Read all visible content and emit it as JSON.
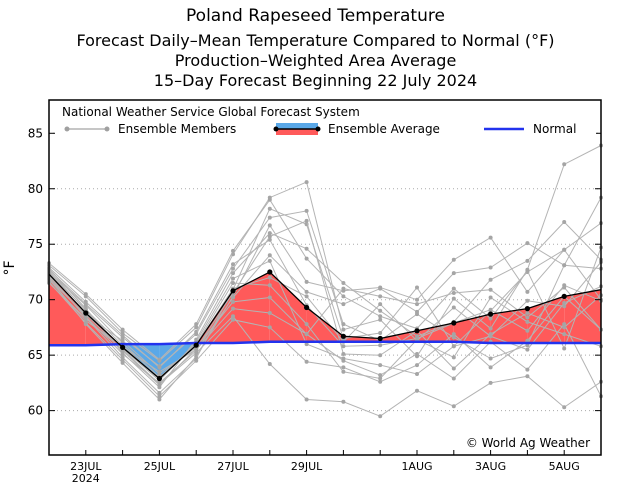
{
  "titles": [
    "Poland Rapeseed Temperature",
    "Forecast Daily–Mean Temperature Compared to Normal (°F)",
    "Production–Weighted Area Average",
    "15–Day Forecast Beginning 22 July 2024"
  ],
  "legend": {
    "system": "National Weather Service Global Forecast System",
    "members": "Ensemble Members",
    "average": "Ensemble Average",
    "normal": "Normal"
  },
  "credit": "© World Ag Weather",
  "colors": {
    "above_normal_fill": "#ff5a5a",
    "below_normal_fill": "#5aa8e8",
    "normal_line": "#2233ee",
    "member_line": "#b4b4b4",
    "average_line": "#000000"
  },
  "chart_data": {
    "type": "line",
    "ylabel": "°F",
    "xlabel": "",
    "ylim": [
      56,
      88
    ],
    "xlim": [
      0,
      15
    ],
    "yticks": [
      60,
      65,
      70,
      75,
      80,
      85
    ],
    "grid": true,
    "legend_position": "top",
    "x_tick_labels": [
      {
        "x": 1,
        "label": "23JUL",
        "sub": "2024"
      },
      {
        "x": 3,
        "label": "25JUL",
        "sub": ""
      },
      {
        "x": 5,
        "label": "27JUL",
        "sub": ""
      },
      {
        "x": 7,
        "label": "29JUL",
        "sub": ""
      },
      {
        "x": 10,
        "label": "1AUG",
        "sub": ""
      },
      {
        "x": 12,
        "label": "3AUG",
        "sub": ""
      },
      {
        "x": 14,
        "label": "5AUG",
        "sub": ""
      }
    ],
    "x": [
      0,
      1,
      2,
      3,
      4,
      5,
      6,
      7,
      8,
      9,
      10,
      11,
      12,
      13,
      14,
      15
    ],
    "normal": [
      65.9,
      65.9,
      66.0,
      66.0,
      66.1,
      66.1,
      66.2,
      66.2,
      66.2,
      66.2,
      66.2,
      66.2,
      66.1,
      66.1,
      66.1,
      66.1
    ],
    "ensemble_average": [
      72.3,
      68.8,
      65.7,
      62.9,
      65.9,
      70.8,
      72.5,
      69.3,
      66.7,
      66.5,
      67.2,
      67.9,
      68.7,
      69.2,
      70.3,
      70.9
    ],
    "ensemble_members": [
      [
        72.8,
        69.2,
        65.2,
        62.1,
        66.4,
        72.4,
        76.0,
        74.6,
        71.5,
        69.0,
        66.7,
        68.0,
        71.8,
        73.5,
        77.0,
        73.6
      ],
      [
        71.8,
        68.1,
        65.8,
        63.5,
        65.5,
        69.2,
        68.8,
        66.9,
        64.5,
        63.2,
        65.1,
        62.9,
        66.2,
        63.7,
        67.8,
        61.3
      ],
      [
        73.1,
        70.3,
        67.0,
        64.5,
        67.5,
        74.1,
        79.2,
        80.6,
        67.3,
        68.2,
        64.9,
        70.1,
        67.4,
        72.7,
        82.2,
        83.9
      ],
      [
        72.0,
        67.8,
        64.3,
        61.0,
        64.9,
        70.3,
        76.7,
        71.6,
        70.8,
        71.1,
        70.0,
        73.6,
        75.6,
        70.7,
        74.5,
        76.9
      ],
      [
        72.5,
        69.5,
        66.1,
        63.0,
        66.0,
        71.5,
        71.3,
        67.8,
        63.5,
        62.9,
        66.4,
        64.8,
        70.2,
        68.0,
        66.9,
        65.8
      ],
      [
        71.5,
        68.3,
        65.5,
        62.4,
        65.2,
        68.5,
        64.2,
        61.0,
        60.8,
        59.5,
        61.8,
        60.4,
        62.5,
        63.1,
        60.3,
        62.6
      ],
      [
        72.9,
        69.8,
        66.8,
        63.9,
        67.1,
        73.2,
        75.4,
        69.5,
        65.8,
        65.9,
        66.5,
        67.9,
        69.1,
        67.2,
        71.3,
        69.9
      ],
      [
        72.2,
        68.4,
        64.8,
        61.6,
        64.7,
        70.9,
        78.2,
        76.8,
        66.5,
        67.0,
        71.1,
        65.8,
        66.7,
        65.5,
        69.7,
        71.2
      ],
      [
        72.6,
        69.0,
        65.6,
        62.7,
        66.2,
        71.9,
        73.5,
        66.0,
        64.7,
        64.1,
        63.3,
        65.8,
        69.0,
        72.5,
        74.5,
        70.0
      ],
      [
        71.9,
        68.6,
        66.3,
        63.3,
        65.7,
        69.8,
        70.2,
        66.9,
        71.0,
        70.3,
        69.6,
        70.6,
        70.9,
        68.4,
        71.1,
        67.3
      ],
      [
        72.7,
        69.6,
        66.6,
        64.0,
        66.9,
        72.8,
        77.4,
        78.0,
        67.8,
        66.3,
        68.7,
        66.6,
        64.7,
        65.9,
        73.1,
        79.2
      ],
      [
        72.1,
        68.5,
        65.1,
        62.5,
        65.4,
        70.2,
        74.0,
        70.7,
        69.6,
        71.0,
        68.9,
        72.4,
        72.9,
        75.1,
        73.1,
        72.8
      ],
      [
        73.3,
        70.5,
        67.3,
        64.6,
        67.8,
        74.4,
        79.0,
        73.7,
        70.3,
        68.5,
        67.4,
        71.0,
        68.3,
        72.6,
        65.6,
        74.7
      ],
      [
        71.6,
        67.9,
        64.6,
        61.3,
        64.5,
        68.2,
        67.5,
        64.4,
        63.9,
        62.6,
        64.1,
        66.9,
        63.9,
        66.3,
        70.3,
        67.3
      ],
      [
        72.4,
        69.1,
        65.9,
        62.8,
        65.9,
        71.0,
        72.0,
        70.3,
        66.2,
        69.6,
        66.3,
        69.3,
        66.7,
        69.9,
        69.4,
        73.4
      ],
      [
        72.3,
        68.7,
        65.4,
        62.3,
        65.6,
        70.6,
        75.7,
        77.1,
        65.1,
        65.0,
        67.2,
        63.8,
        66.9,
        68.8,
        67.5,
        70.4
      ]
    ]
  }
}
